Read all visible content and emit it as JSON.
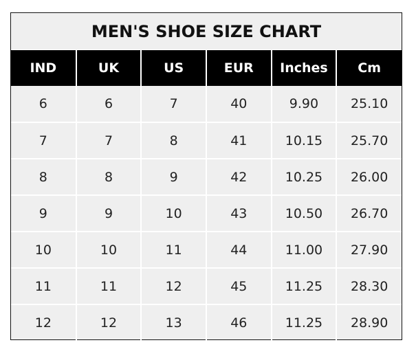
{
  "title": "MEN'S SHOE SIZE CHART",
  "headers": [
    "IND",
    "UK",
    "US",
    "EUR",
    "Inches",
    "Cm"
  ],
  "rows": [
    [
      "6",
      "6",
      "7",
      "40",
      "9.90",
      "25.10"
    ],
    [
      "7",
      "7",
      "8",
      "41",
      "10.15",
      "25.70"
    ],
    [
      "8",
      "8",
      "9",
      "42",
      "10.25",
      "26.00"
    ],
    [
      "9",
      "9",
      "10",
      "43",
      "10.50",
      "26.70"
    ],
    [
      "10",
      "10",
      "11",
      "44",
      "11.00",
      "27.90"
    ],
    [
      "11",
      "11",
      "12",
      "45",
      "11.25",
      "28.30"
    ],
    [
      "12",
      "12",
      "13",
      "46",
      "11.25",
      "28.90"
    ]
  ],
  "colors": {
    "header_bg": "#000000",
    "header_text": "#ffffff",
    "cell_bg": "#efefef",
    "grid": "#ffffff",
    "border": "#111111"
  }
}
